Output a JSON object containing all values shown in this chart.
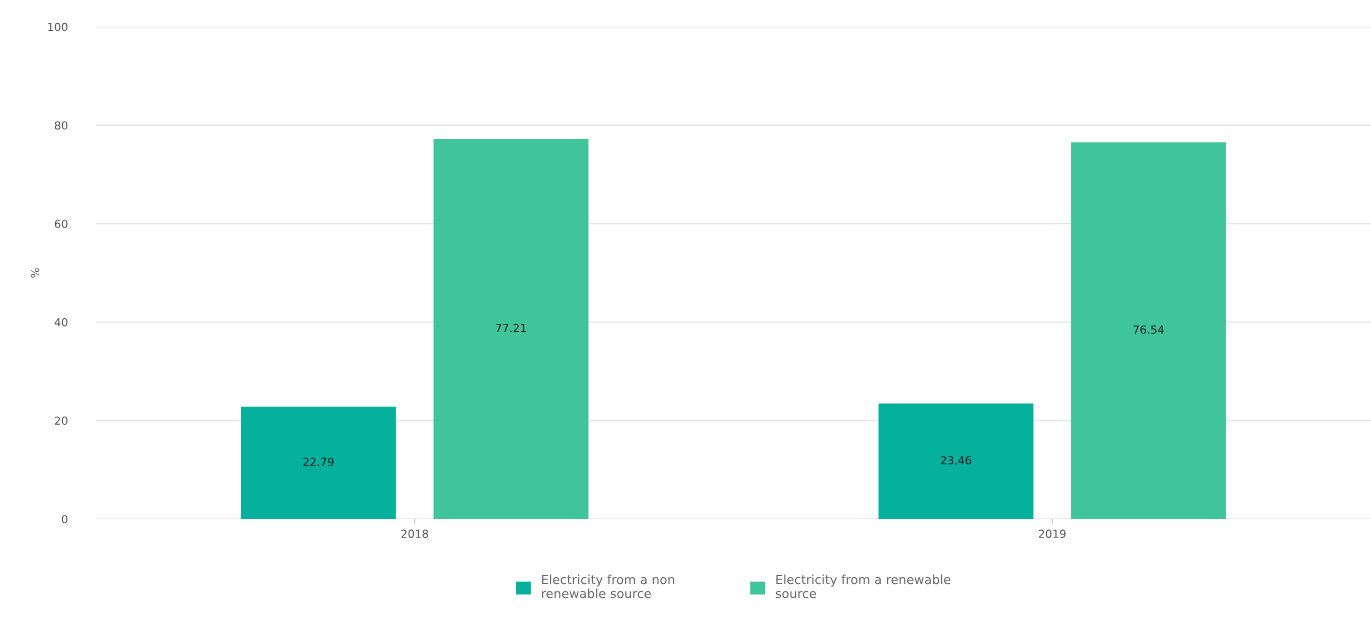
{
  "chart_data": {
    "type": "bar",
    "ylabel": "%",
    "categories": [
      "2018",
      "2019"
    ],
    "series": [
      {
        "name": "Electricity from a non renewable source",
        "color": "#05b09c",
        "values": [
          22.79,
          23.46
        ]
      },
      {
        "name": "Electricity from a renewable source",
        "color": "#40c499",
        "values": [
          77.21,
          76.54
        ]
      }
    ],
    "ylim": [
      0,
      100
    ],
    "yticks": [
      0,
      20,
      40,
      60,
      80,
      100
    ],
    "grid": "y",
    "legend": "bottom",
    "data_labels": true
  }
}
